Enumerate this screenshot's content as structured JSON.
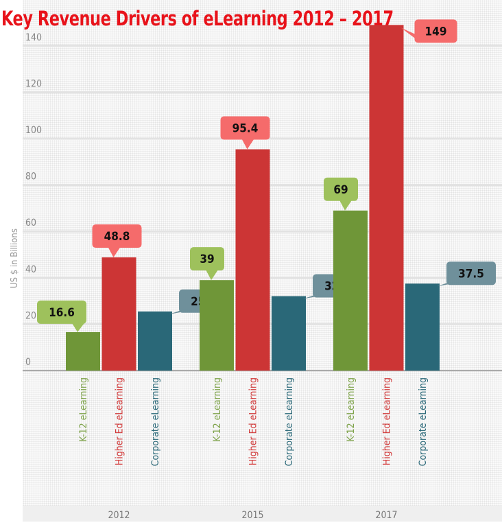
{
  "chart_data": {
    "type": "bar",
    "title": "Key Revenue Drivers of eLearning 2012 – 2017",
    "ylabel": "US $ in Billions",
    "xlabel": "",
    "ylim": [
      0,
      150
    ],
    "yticks": [
      0,
      20,
      40,
      60,
      80,
      100,
      120,
      140
    ],
    "grid": true,
    "groups": [
      "2012",
      "2015",
      "2017"
    ],
    "categories": [
      "K-12 eLearning",
      "Higher Ed eLearning",
      "Corporate eLearning"
    ],
    "series": [
      {
        "name": "K-12 eLearning",
        "values": [
          16.6,
          39,
          69
        ],
        "labels": [
          "16.6",
          "39",
          "69"
        ]
      },
      {
        "name": "Higher Ed eLearning",
        "values": [
          48.8,
          95.4,
          149
        ],
        "labels": [
          "48.8",
          "95.4",
          "149"
        ]
      },
      {
        "name": "Corporate eLearning",
        "values": [
          25.5,
          32.1,
          37.5
        ],
        "labels": [
          "25.5",
          "32.1",
          "37.5"
        ]
      }
    ],
    "colors": {
      "bars": [
        "#6f9638",
        "#cc3535",
        "#2a6878"
      ],
      "callouts": [
        "#9ec15c",
        "#f56b6b",
        "#6f909b"
      ],
      "title": "#e8121a"
    }
  }
}
